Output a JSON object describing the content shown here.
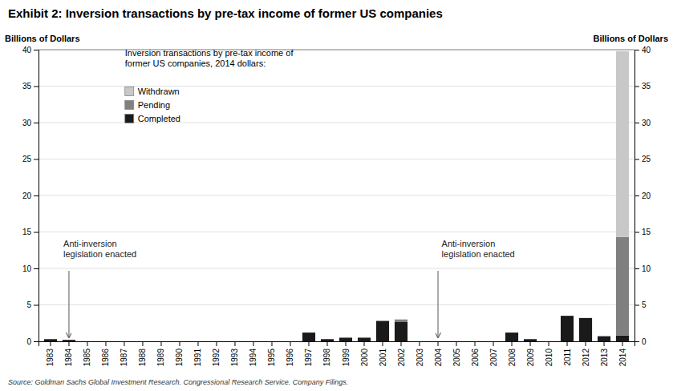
{
  "chart_data": {
    "type": "bar",
    "stacked": true,
    "title": "Exhibit 2: Inversion transactions by pre-tax income of former US companies",
    "ylabel": "Billions of Dollars",
    "y2label": "Billions of Dollars",
    "categories": [
      "1983",
      "1984",
      "1985",
      "1986",
      "1987",
      "1988",
      "1989",
      "1990",
      "1991",
      "1992",
      "1993",
      "1994",
      "1995",
      "1996",
      "1997",
      "1998",
      "1999",
      "2000",
      "2001",
      "2002",
      "2003",
      "2004",
      "2005",
      "2006",
      "2007",
      "2008",
      "2009",
      "2010",
      "2011",
      "2012",
      "2013",
      "2014"
    ],
    "series": [
      {
        "name": "Completed",
        "color": "#1a1a1a",
        "values": [
          0.3,
          0.2,
          0,
          0,
          0,
          0,
          0,
          0,
          0,
          0,
          0,
          0,
          0,
          0,
          1.2,
          0.3,
          0.5,
          0.5,
          2.8,
          2.7,
          0,
          0,
          0,
          0,
          0,
          1.2,
          0.3,
          0,
          3.5,
          3.2,
          0.7,
          0.8
        ]
      },
      {
        "name": "Pending",
        "color": "#808080",
        "values": [
          0,
          0,
          0,
          0,
          0,
          0,
          0,
          0,
          0,
          0,
          0,
          0,
          0,
          0,
          0,
          0,
          0,
          0,
          0,
          0.3,
          0,
          0,
          0,
          0,
          0,
          0,
          0,
          0,
          0,
          0,
          0,
          13.5
        ]
      },
      {
        "name": "Withdrawn",
        "color": "#c8c8c8",
        "values": [
          0,
          0,
          0,
          0,
          0,
          0,
          0,
          0,
          0,
          0,
          0,
          0,
          0,
          0,
          0,
          0,
          0,
          0,
          0,
          0,
          0,
          0,
          0,
          0,
          0,
          0,
          0,
          0,
          0,
          0,
          0,
          25.5
        ]
      }
    ],
    "ylim": [
      0,
      40
    ],
    "yticks": [
      0,
      5,
      10,
      15,
      20,
      25,
      30,
      35,
      40
    ],
    "y2lim": [
      0,
      40
    ],
    "y2ticks": [
      0,
      5,
      10,
      15,
      20,
      25,
      30,
      35,
      40
    ],
    "grid": true,
    "legend": "upper left",
    "legend_title": "Inversion transactions by pre-tax income of\nformer US companies, 2014 dollars:",
    "annotations": [
      {
        "text": "Anti-inversion\nlegislation enacted",
        "x": "1984",
        "y": 0.3,
        "text_y": 13
      },
      {
        "text": "Anti-inversion\nlegislation enacted",
        "x": "2004",
        "y": 0.3,
        "text_y": 13
      }
    ],
    "source": "Source: Goldman Sachs Global Investment Research. Congressional Research Service. Company Filings."
  }
}
